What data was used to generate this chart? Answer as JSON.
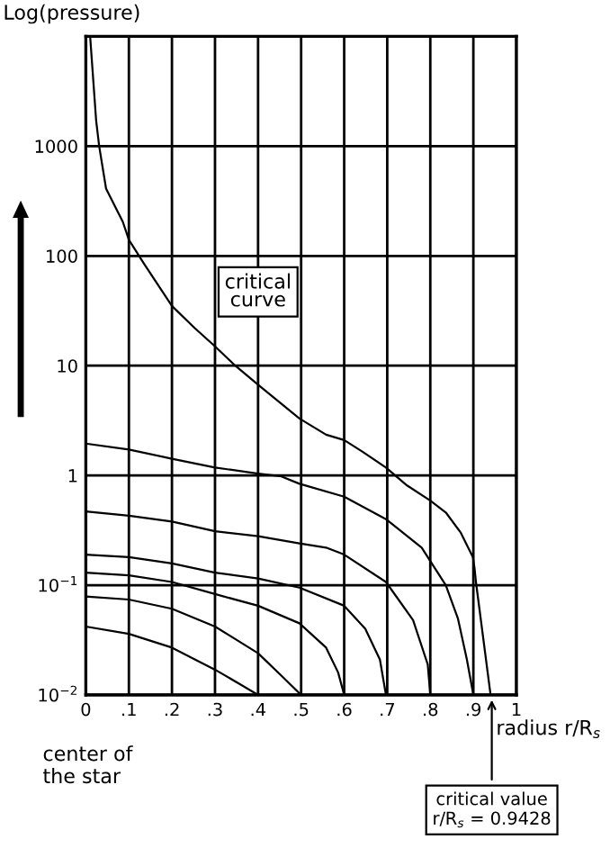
{
  "chart_data": {
    "type": "line",
    "ylabel": "Log(pressure)",
    "xlabel": "radius r/R$_{s}$",
    "series": [
      {
        "color": "#000000",
        "x": [
          0.01,
          0.024,
          0.031,
          0.047,
          0.086,
          0.1,
          0.135,
          0.2,
          0.253,
          0.3,
          0.347,
          0.4,
          0.496,
          0.558,
          0.6,
          0.642,
          0.697,
          0.746,
          0.8,
          0.836,
          0.871,
          0.899,
          0.903,
          0.906,
          0.94
        ],
        "values": [
          10000,
          1700,
          1000,
          410,
          204,
          140,
          85,
          35,
          22,
          15,
          10,
          6.7,
          3.3,
          2.35,
          2.1,
          1.65,
          1.18,
          0.81,
          0.59,
          0.46,
          0.3,
          0.18,
          0.14,
          0.107,
          0.01
        ]
      },
      {
        "color": "#000000",
        "x": [
          0,
          0.1,
          0.2,
          0.3,
          0.4,
          0.454,
          0.496,
          0.6,
          0.697,
          0.78,
          0.836,
          0.864,
          0.885,
          0.9
        ],
        "values": [
          1.95,
          1.72,
          1.42,
          1.18,
          1.04,
          0.98,
          0.84,
          0.64,
          0.4,
          0.22,
          0.1,
          0.05,
          0.021,
          0.01
        ]
      },
      {
        "color": "#000000",
        "x": [
          0,
          0.1,
          0.2,
          0.3,
          0.4,
          0.496,
          0.558,
          0.6,
          0.697,
          0.76,
          0.794,
          0.8
        ],
        "values": [
          0.47,
          0.43,
          0.38,
          0.31,
          0.28,
          0.24,
          0.22,
          0.19,
          0.107,
          0.048,
          0.019,
          0.01
        ]
      },
      {
        "color": "#000000",
        "x": [
          0,
          0.1,
          0.2,
          0.3,
          0.4,
          0.496,
          0.6,
          0.649,
          0.683,
          0.697
        ],
        "values": [
          0.19,
          0.18,
          0.158,
          0.13,
          0.115,
          0.095,
          0.065,
          0.04,
          0.021,
          0.01
        ]
      },
      {
        "color": "#000000",
        "x": [
          0,
          0.1,
          0.2,
          0.3,
          0.4,
          0.496,
          0.558,
          0.586,
          0.6
        ],
        "values": [
          0.13,
          0.123,
          0.107,
          0.083,
          0.065,
          0.045,
          0.027,
          0.016,
          0.01
        ]
      },
      {
        "color": "#000000",
        "x": [
          0,
          0.1,
          0.2,
          0.3,
          0.4,
          0.454,
          0.5
        ],
        "values": [
          0.079,
          0.074,
          0.061,
          0.042,
          0.024,
          0.015,
          0.01
        ]
      },
      {
        "color": "#000000",
        "x": [
          0,
          0.1,
          0.2,
          0.3,
          0.357,
          0.4
        ],
        "values": [
          0.042,
          0.036,
          0.027,
          0.017,
          0.0126,
          0.01
        ]
      }
    ],
    "xlim": [
      0,
      1
    ],
    "ylim": [
      0.01,
      10000
    ],
    "log": "y",
    "xticks": [
      0,
      {
        "value": 0.1,
        "label": ".1"
      },
      {
        "value": 0.2,
        "label": ".2"
      },
      {
        "value": 0.3,
        "label": ".3"
      },
      {
        "value": 0.4,
        "label": ".4"
      },
      {
        "value": 0.5,
        "label": ".5"
      },
      {
        "value": 0.6,
        "label": ".6"
      },
      {
        "value": 0.7,
        "label": ".7"
      },
      {
        "value": 0.8,
        "label": ".8"
      },
      {
        "value": 0.9,
        "label": ".9"
      },
      1
    ],
    "yticks": [
      {
        "value": 0.01,
        "label": "10$^{−2}$"
      },
      {
        "value": 0.1,
        "label": "10$^{−1}$"
      },
      1,
      10,
      100,
      1000
    ],
    "grid": true,
    "marker": "none",
    "line_style": "solid",
    "annotations": [
      "critical\ncurve",
      "center of\nthe star",
      {
        "text": "critical value\nr/R$_{s}$ = 0.9428",
        "x": 0.9428,
        "y": 0.01
      }
    ]
  }
}
